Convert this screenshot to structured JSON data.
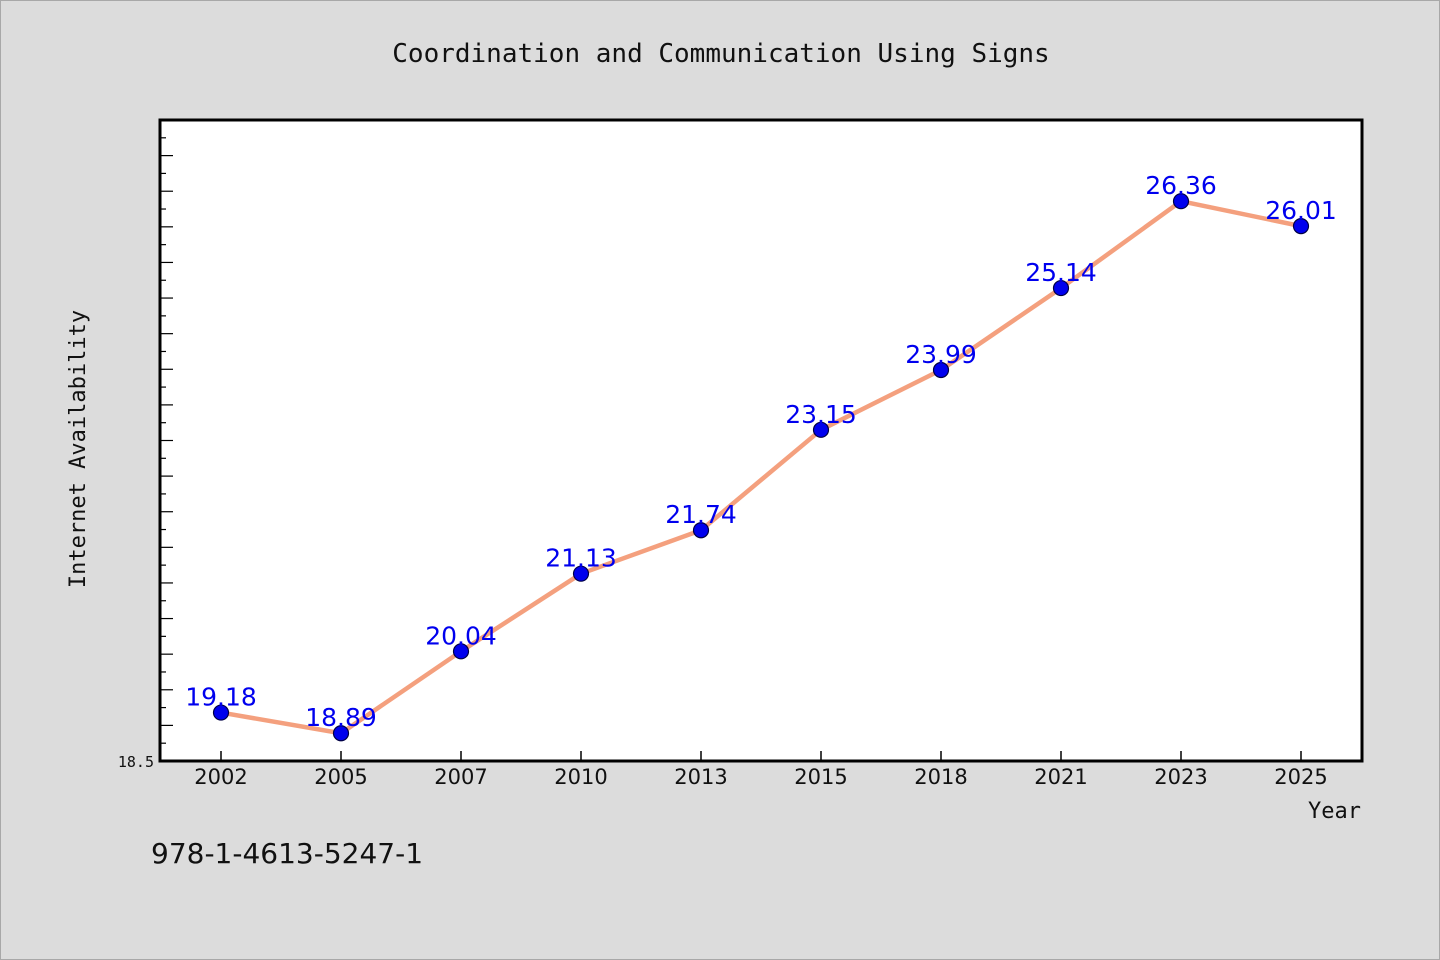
{
  "chart_data": {
    "type": "line",
    "title": "Coordination and Communication Using Signs",
    "xlabel": "Year",
    "ylabel": "Internet Availability",
    "categories": [
      "2002",
      "2005",
      "2007",
      "2010",
      "2013",
      "2015",
      "2018",
      "2021",
      "2023",
      "2025"
    ],
    "series": [
      {
        "values": [
          19.18,
          18.89,
          20.04,
          21.13,
          21.74,
          23.15,
          23.99,
          25.14,
          26.36,
          26.01
        ]
      }
    ],
    "ylim": [
      18.5,
      27.5
    ],
    "ytick_labels": [
      "18.5"
    ],
    "data_labels": [
      "19.18",
      "18.89",
      "20.04",
      "21.13",
      "21.74",
      "23.15",
      "23.99",
      "25.14",
      "26.36",
      "26.01"
    ],
    "grid": false,
    "legend": false,
    "colors": {
      "line": "#f4a07e",
      "marker": "#0000ee",
      "label": "#0000ee",
      "plot_bg": "#ffffff",
      "page_bg": "#dcdcdc",
      "frame": "#000000"
    }
  },
  "footer": {
    "isbn": "978-1-4613-5247-1"
  }
}
